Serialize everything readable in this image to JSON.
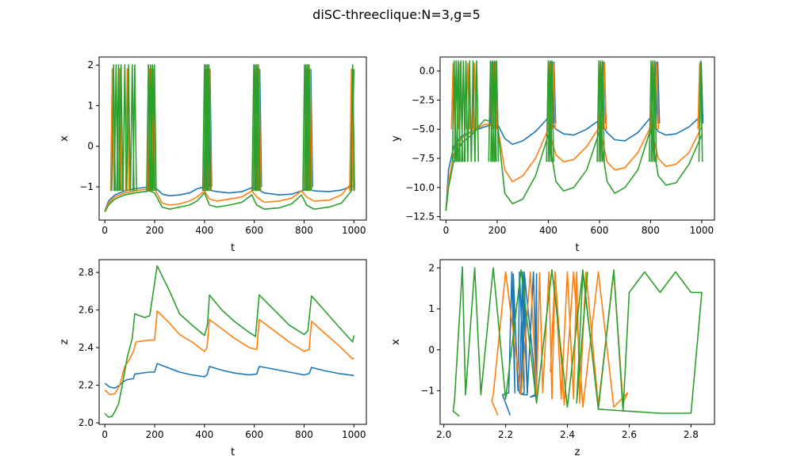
{
  "figure": {
    "suptitle": "diSC-threeclique:N=3,g=5"
  },
  "colors": {
    "series1": "#1f77b4",
    "series2": "#ff7f0e",
    "series3": "#2ca02c"
  },
  "chart_data": [
    {
      "type": "line",
      "xlabel": "t",
      "ylabel": "x",
      "xlim": [
        -23,
        1050
      ],
      "ylim": [
        -1.82,
        2.2
      ],
      "xticks": [
        0,
        200,
        400,
        600,
        800,
        1000
      ],
      "yticks": [
        -1,
        0,
        1,
        2
      ],
      "xtick_labels": [
        "0",
        "200",
        "400",
        "600",
        "800",
        "1000"
      ],
      "ytick_labels": [
        "−1",
        "0",
        "1",
        "2"
      ],
      "series": [
        {
          "color": "#1f77b4",
          "x": [
            0,
            15,
            40,
            80,
            120,
            180,
            200,
            230,
            260,
            300,
            340,
            370,
            400,
            420,
            450,
            500,
            550,
            590,
            610,
            640,
            700,
            750,
            790,
            810,
            840,
            900,
            950,
            1000
          ],
          "y": [
            -1.6,
            -1.35,
            -1.2,
            -1.1,
            -1.05,
            -1.0,
            -1.0,
            -1.18,
            -1.22,
            -1.2,
            -1.15,
            -1.05,
            -1.0,
            -1.08,
            -1.12,
            -1.15,
            -1.12,
            -1.02,
            -1.05,
            -1.15,
            -1.2,
            -1.18,
            -1.1,
            -1.05,
            -1.1,
            -1.12,
            -1.08,
            -0.97
          ]
        },
        {
          "color": "#ff7f0e",
          "x": [
            0,
            15,
            40,
            80,
            120,
            180,
            200,
            230,
            260,
            300,
            340,
            370,
            400,
            420,
            450,
            500,
            550,
            590,
            610,
            640,
            700,
            750,
            790,
            810,
            840,
            900,
            950,
            990,
            1000
          ],
          "y": [
            -1.6,
            -1.4,
            -1.25,
            -1.15,
            -1.1,
            -1.05,
            -1.05,
            -1.4,
            -1.45,
            -1.42,
            -1.35,
            -1.25,
            -1.1,
            -1.3,
            -1.35,
            -1.3,
            -1.25,
            -1.1,
            -1.25,
            -1.38,
            -1.35,
            -1.28,
            -1.1,
            -1.25,
            -1.35,
            -1.33,
            -1.2,
            -0.9,
            -0.55
          ]
        },
        {
          "color": "#2ca02c",
          "x": [
            0,
            15,
            40,
            80,
            120,
            180,
            200,
            230,
            260,
            300,
            340,
            370,
            400,
            420,
            450,
            500,
            550,
            590,
            610,
            640,
            700,
            750,
            790,
            810,
            840,
            900,
            950,
            990,
            1000
          ],
          "y": [
            -1.62,
            -1.45,
            -1.3,
            -1.2,
            -1.15,
            -1.1,
            -1.15,
            -1.5,
            -1.55,
            -1.5,
            -1.45,
            -1.35,
            -1.15,
            -1.45,
            -1.5,
            -1.45,
            -1.38,
            -1.2,
            -1.45,
            -1.55,
            -1.52,
            -1.42,
            -1.2,
            -1.45,
            -1.55,
            -1.5,
            -1.4,
            -1.1,
            1.9
          ]
        }
      ],
      "spikes": [
        {
          "color": "#1f77b4",
          "x": [
            180,
            188,
            196,
            410,
            416,
            422,
            610,
            616,
            622,
            815,
            821,
            827,
            995
          ],
          "top": 1.9,
          "base": -1.0
        },
        {
          "color": "#ff7f0e",
          "x": [
            30,
            60,
            90,
            178,
            186,
            194,
            405,
            412,
            420,
            603,
            611,
            619,
            808,
            816,
            824,
            990
          ],
          "top": 1.92,
          "base": -1.1
        },
        {
          "color": "#2ca02c",
          "x": [
            35,
            45,
            55,
            65,
            80,
            95,
            110,
            120,
            175,
            183,
            191,
            199,
            400,
            406,
            412,
            418,
            598,
            604,
            610,
            616,
            802,
            808,
            814,
            820,
            995
          ],
          "top": 2.02,
          "base": -1.1
        }
      ]
    },
    {
      "type": "line",
      "xlabel": "t",
      "ylabel": "y",
      "xlim": [
        -23,
        1050
      ],
      "ylim": [
        -12.8,
        1.2
      ],
      "xticks": [
        0,
        200,
        400,
        600,
        800,
        1000
      ],
      "yticks": [
        -12.5,
        -10.0,
        -7.5,
        -5.0,
        -2.5,
        0.0
      ],
      "xtick_labels": [
        "0",
        "200",
        "400",
        "600",
        "800",
        "1000"
      ],
      "ytick_labels": [
        "−12.5",
        "−10.0",
        "−7.5",
        "−5.0",
        "−2.5",
        "0.0"
      ],
      "series": [
        {
          "color": "#1f77b4",
          "x": [
            0,
            10,
            30,
            60,
            100,
            150,
            200,
            230,
            260,
            300,
            350,
            400,
            430,
            460,
            500,
            550,
            600,
            630,
            660,
            700,
            750,
            800,
            830,
            860,
            900,
            950,
            1000
          ],
          "y": [
            -12.0,
            -8.5,
            -6.5,
            -5.6,
            -5.2,
            -4.8,
            -4.5,
            -5.8,
            -6.3,
            -6.0,
            -5.2,
            -4.0,
            -5.0,
            -5.4,
            -5.5,
            -5.0,
            -4.2,
            -5.3,
            -5.9,
            -6.0,
            -5.3,
            -4.0,
            -5.2,
            -5.5,
            -5.4,
            -4.8,
            -3.8
          ]
        },
        {
          "color": "#ff7f0e",
          "x": [
            0,
            10,
            30,
            60,
            100,
            150,
            200,
            230,
            260,
            300,
            350,
            400,
            430,
            460,
            500,
            550,
            600,
            630,
            660,
            700,
            750,
            800,
            830,
            860,
            900,
            950,
            1000
          ],
          "y": [
            -12.0,
            -9.5,
            -7.2,
            -5.8,
            -5.2,
            -4.6,
            -4.5,
            -8.5,
            -9.5,
            -9.0,
            -7.5,
            -5.0,
            -7.2,
            -7.8,
            -7.6,
            -6.5,
            -4.8,
            -7.8,
            -8.5,
            -8.3,
            -7.0,
            -4.8,
            -7.5,
            -8.2,
            -8.0,
            -7.0,
            -4.8
          ]
        },
        {
          "color": "#2ca02c",
          "x": [
            0,
            10,
            30,
            60,
            100,
            150,
            200,
            230,
            260,
            300,
            350,
            400,
            430,
            460,
            500,
            550,
            600,
            630,
            660,
            700,
            750,
            800,
            830,
            860,
            900,
            950,
            1000
          ],
          "y": [
            -12.0,
            -10.0,
            -7.8,
            -6.2,
            -5.5,
            -4.2,
            -4.4,
            -10.5,
            -11.4,
            -11.0,
            -9.0,
            -5.5,
            -9.5,
            -10.3,
            -10.0,
            -8.5,
            -5.2,
            -9.5,
            -10.5,
            -10.0,
            -8.5,
            -5.0,
            -9.0,
            -9.8,
            -9.6,
            -8.0,
            -5.5
          ]
        }
      ],
      "spikes": [
        {
          "color": "#1f77b4",
          "x": [
            180,
            188,
            196,
            410,
            416,
            422,
            612,
            618,
            822,
            828,
            998
          ],
          "top": 0.8,
          "base": -4.5
        },
        {
          "color": "#ff7f0e",
          "x": [
            28,
            55,
            85,
            112,
            176,
            184,
            192,
            404,
            412,
            420,
            604,
            612,
            620,
            808,
            816,
            824,
            992
          ],
          "top": 0.7,
          "base": -5.0
        },
        {
          "color": "#2ca02c",
          "x": [
            32,
            40,
            48,
            58,
            68,
            78,
            92,
            106,
            120,
            174,
            182,
            190,
            198,
            400,
            407,
            414,
            598,
            605,
            612,
            802,
            809,
            816,
            996
          ],
          "top": 0.9,
          "base": -7.8
        }
      ]
    },
    {
      "type": "line",
      "xlabel": "t",
      "ylabel": "z",
      "xlim": [
        -23,
        1050
      ],
      "ylim": [
        1.992,
        2.868
      ],
      "xticks": [
        0,
        200,
        400,
        600,
        800,
        1000
      ],
      "yticks": [
        2.0,
        2.2,
        2.4,
        2.6,
        2.8
      ],
      "xtick_labels": [
        "0",
        "200",
        "400",
        "600",
        "800",
        "1000"
      ],
      "ytick_labels": [
        "2.0",
        "2.2",
        "2.4",
        "2.6",
        "2.8"
      ],
      "series": [
        {
          "color": "#1f77b4",
          "x": [
            0,
            20,
            40,
            60,
            75,
            90,
            115,
            120,
            180,
            200,
            210,
            260,
            300,
            350,
            400,
            410,
            420,
            470,
            520,
            580,
            610,
            620,
            680,
            740,
            800,
            820,
            830,
            880,
            940,
            1000
          ],
          "y": [
            2.21,
            2.19,
            2.185,
            2.2,
            2.22,
            2.23,
            2.235,
            2.26,
            2.27,
            2.27,
            2.315,
            2.29,
            2.27,
            2.255,
            2.245,
            2.255,
            2.3,
            2.28,
            2.265,
            2.255,
            2.26,
            2.3,
            2.285,
            2.27,
            2.255,
            2.262,
            2.295,
            2.278,
            2.262,
            2.252
          ]
        },
        {
          "color": "#ff7f0e",
          "x": [
            0,
            20,
            40,
            60,
            80,
            100,
            115,
            125,
            180,
            200,
            210,
            260,
            300,
            350,
            400,
            410,
            420,
            470,
            520,
            580,
            610,
            620,
            680,
            740,
            800,
            820,
            830,
            880,
            940,
            995,
            1000
          ],
          "y": [
            2.175,
            2.15,
            2.155,
            2.2,
            2.3,
            2.34,
            2.38,
            2.43,
            2.44,
            2.44,
            2.595,
            2.53,
            2.47,
            2.43,
            2.38,
            2.4,
            2.55,
            2.5,
            2.45,
            2.4,
            2.39,
            2.55,
            2.49,
            2.43,
            2.38,
            2.39,
            2.54,
            2.48,
            2.41,
            2.34,
            2.345
          ]
        },
        {
          "color": "#2ca02c",
          "x": [
            0,
            15,
            30,
            40,
            55,
            70,
            90,
            110,
            120,
            160,
            180,
            210,
            260,
            300,
            350,
            400,
            412,
            420,
            470,
            520,
            580,
            605,
            620,
            680,
            740,
            800,
            815,
            830,
            880,
            940,
            995,
            1000
          ],
          "y": [
            2.05,
            2.03,
            2.035,
            2.06,
            2.1,
            2.2,
            2.35,
            2.45,
            2.58,
            2.56,
            2.57,
            2.835,
            2.7,
            2.58,
            2.52,
            2.465,
            2.52,
            2.68,
            2.6,
            2.54,
            2.48,
            2.46,
            2.68,
            2.6,
            2.52,
            2.47,
            2.49,
            2.675,
            2.6,
            2.51,
            2.43,
            2.465
          ]
        }
      ]
    },
    {
      "type": "line",
      "xlabel": "z",
      "ylabel": "x",
      "xlim": [
        1.988,
        2.876
      ],
      "ylim": [
        -1.82,
        2.2
      ],
      "xticks": [
        2.0,
        2.2,
        2.4,
        2.6,
        2.8
      ],
      "yticks": [
        -1,
        0,
        1,
        2
      ],
      "xtick_labels": [
        "2.0",
        "2.2",
        "2.4",
        "2.6",
        "2.8"
      ],
      "ytick_labels": [
        "−1",
        "0",
        "1",
        "2"
      ],
      "series": [
        {
          "color": "#1f77b4",
          "x": [
            2.215,
            2.2,
            2.19,
            2.21,
            2.22,
            2.23,
            2.225,
            2.24,
            2.245,
            2.26,
            2.255,
            2.27,
            2.26,
            2.3,
            2.3,
            2.295,
            2.28,
            2.3,
            2.29,
            2.27,
            2.26,
            2.25,
            2.245,
            2.255,
            2.26,
            2.25,
            2.26,
            2.252
          ],
          "y": [
            -1.6,
            -1.3,
            -1.1,
            -1.05,
            1.9,
            -1.05,
            1.85,
            -1.0,
            1.9,
            -1.0,
            1.88,
            -1.05,
            1.9,
            -1.05,
            1.85,
            -1.1,
            -1.15,
            -1.12,
            1.9,
            -1.1,
            -1.1,
            -1.08,
            -1.05,
            1.9,
            -1.05,
            -1.08,
            1.9,
            -0.97
          ]
        },
        {
          "color": "#ff7f0e",
          "x": [
            2.175,
            2.155,
            2.16,
            2.2,
            2.25,
            2.28,
            2.3,
            2.31,
            2.32,
            2.34,
            2.35,
            2.36,
            2.38,
            2.4,
            2.42,
            2.43,
            2.44,
            2.46,
            2.5,
            2.55,
            2.58,
            2.595,
            2.55,
            2.5,
            2.45,
            2.42,
            2.39,
            2.36,
            2.345
          ],
          "y": [
            -1.6,
            -1.25,
            -1.1,
            1.9,
            -1.1,
            1.9,
            -1.1,
            1.88,
            -1.05,
            1.9,
            -1.2,
            1.9,
            -1.2,
            1.9,
            -1.2,
            1.9,
            -1.3,
            1.9,
            -1.35,
            1.9,
            -1.3,
            -1.05,
            -1.4,
            1.9,
            -1.4,
            1.9,
            -1.35,
            1.9,
            -0.55
          ]
        },
        {
          "color": "#2ca02c",
          "x": [
            2.05,
            2.03,
            2.035,
            2.06,
            2.07,
            2.1,
            2.12,
            2.16,
            2.2,
            2.25,
            2.3,
            2.35,
            2.4,
            2.45,
            2.5,
            2.55,
            2.58,
            2.6,
            2.65,
            2.7,
            2.75,
            2.8,
            2.835,
            2.8,
            2.7,
            2.6,
            2.5,
            2.45,
            2.43,
            2.465
          ],
          "y": [
            -1.62,
            -1.5,
            -1.2,
            2.02,
            -1.1,
            2.0,
            -1.1,
            2.0,
            -1.2,
            1.95,
            -1.3,
            1.95,
            -1.4,
            1.95,
            -1.45,
            1.95,
            -1.5,
            1.4,
            1.9,
            1.4,
            1.9,
            1.4,
            1.4,
            -1.55,
            -1.55,
            -1.5,
            -1.45,
            1.9,
            -1.3,
            1.9
          ]
        }
      ]
    }
  ]
}
